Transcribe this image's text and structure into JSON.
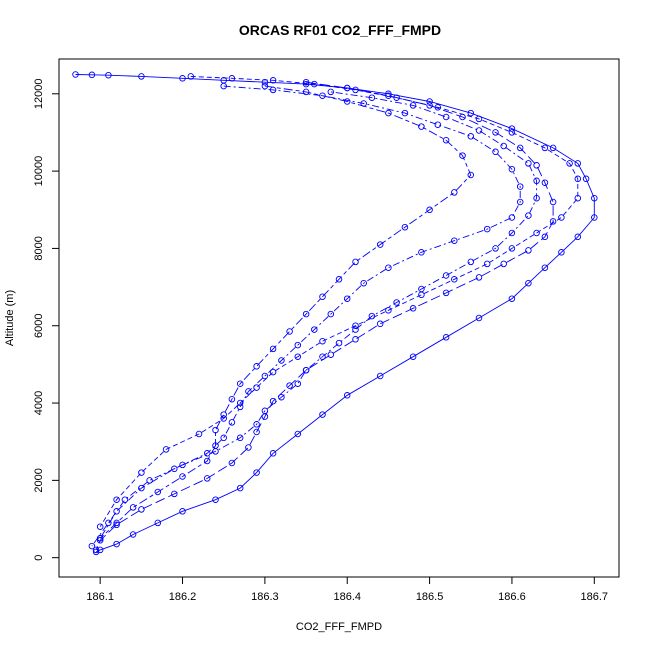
{
  "chart_data": {
    "type": "scatter",
    "title": "ORCAS RF01 CO2_FFF_FMPD",
    "xlabel": "CO2_FFF_FMPD",
    "ylabel": "Altitude (m)",
    "xlim": [
      186.05,
      186.73
    ],
    "ylim": [
      -500,
      12900
    ],
    "xticks": [
      "186.1",
      "186.2",
      "186.3",
      "186.4",
      "186.5",
      "186.6",
      "186.7"
    ],
    "xtick_values": [
      186.1,
      186.2,
      186.3,
      186.4,
      186.5,
      186.6,
      186.7
    ],
    "yticks": [
      "0",
      "2000",
      "4000",
      "6000",
      "8000",
      "10000",
      "12000"
    ],
    "ytick_values": [
      0,
      2000,
      4000,
      6000,
      8000,
      10000,
      12000
    ],
    "marker": "open-circle",
    "color": "#0000ff",
    "grid": false,
    "legend": "none",
    "series": [
      {
        "style": "solid",
        "x": [
          186.07,
          186.09,
          186.11,
          186.15,
          186.2,
          186.25,
          186.3,
          186.35,
          186.4,
          186.45,
          186.5,
          186.55,
          186.6,
          186.65,
          186.68,
          186.69,
          186.7,
          186.7,
          186.68,
          186.66,
          186.64,
          186.62,
          186.6,
          186.56,
          186.52,
          186.48,
          186.44,
          186.4,
          186.37,
          186.34,
          186.31,
          186.29,
          186.27,
          186.24,
          186.2,
          186.17,
          186.14,
          186.12,
          186.1,
          186.095
        ],
        "y": [
          12500,
          12490,
          12480,
          12450,
          12400,
          12350,
          12300,
          12250,
          12150,
          12000,
          11800,
          11500,
          11100,
          10600,
          10200,
          9800,
          9300,
          8800,
          8300,
          7900,
          7500,
          7100,
          6700,
          6200,
          5700,
          5200,
          4700,
          4200,
          3700,
          3200,
          2700,
          2200,
          1800,
          1500,
          1200,
          900,
          600,
          350,
          200,
          150
        ]
      },
      {
        "style": "dashed",
        "x": [
          186.21,
          186.26,
          186.31,
          186.36,
          186.41,
          186.46,
          186.51,
          186.56,
          186.6,
          186.64,
          186.67,
          186.68,
          186.68,
          186.66,
          186.63,
          186.6,
          186.57,
          186.53,
          186.49,
          186.45,
          186.41,
          186.37,
          186.34,
          186.31,
          186.29,
          186.27,
          186.25,
          186.22,
          186.18,
          186.15,
          186.12,
          186.1
        ],
        "y": [
          12450,
          12400,
          12350,
          12250,
          12100,
          11900,
          11650,
          11350,
          11000,
          10600,
          10200,
          9800,
          9300,
          8800,
          8400,
          8000,
          7600,
          7200,
          6800,
          6400,
          6000,
          5600,
          5200,
          4800,
          4400,
          4000,
          3600,
          3200,
          2800,
          2200,
          1500,
          800
        ]
      },
      {
        "style": "longdash",
        "x": [
          186.35,
          186.4,
          186.45,
          186.5,
          186.54,
          186.58,
          186.61,
          186.63,
          186.64,
          186.65,
          186.65,
          186.64,
          186.62,
          186.59,
          186.56,
          186.52,
          186.48,
          186.44,
          186.41,
          186.38,
          186.35,
          186.33,
          186.31,
          186.3,
          186.29,
          186.28,
          186.26,
          186.23,
          186.19,
          186.15,
          186.12,
          186.1,
          186.095
        ],
        "y": [
          12300,
          12150,
          11950,
          11700,
          11400,
          11000,
          10600,
          10150,
          9700,
          9200,
          8700,
          8300,
          7950,
          7600,
          7250,
          6850,
          6450,
          6050,
          5650,
          5250,
          4850,
          4450,
          4050,
          3650,
          3250,
          2850,
          2450,
          2050,
          1650,
          1250,
          850,
          450,
          200
        ]
      },
      {
        "style": "dashdot",
        "x": [
          186.25,
          186.31,
          186.37,
          186.42,
          186.47,
          186.51,
          186.55,
          186.58,
          186.6,
          186.61,
          186.61,
          186.6,
          186.57,
          186.53,
          186.49,
          186.45,
          186.42,
          186.4,
          186.38,
          186.36,
          186.34,
          186.32,
          186.3,
          186.28,
          186.27,
          186.26,
          186.25,
          186.23,
          186.19,
          186.15,
          186.12,
          186.1
        ],
        "y": [
          12200,
          12100,
          11950,
          11750,
          11500,
          11200,
          10900,
          10500,
          10050,
          9600,
          9200,
          8800,
          8500,
          8200,
          7900,
          7500,
          7100,
          6700,
          6300,
          5900,
          5500,
          5100,
          4700,
          4300,
          3900,
          3500,
          3100,
          2700,
          2300,
          1800,
          1200,
          500
        ]
      },
      {
        "style": "dotdash",
        "x": [
          186.38,
          186.43,
          186.48,
          186.52,
          186.56,
          186.59,
          186.62,
          186.63,
          186.63,
          186.62,
          186.6,
          186.58,
          186.55,
          186.52,
          186.49,
          186.46,
          186.43,
          186.41,
          186.39,
          186.37,
          186.35,
          186.34,
          186.32,
          186.3,
          186.29,
          186.27,
          186.24,
          186.2,
          186.16,
          186.13,
          186.11,
          186.09
        ],
        "y": [
          12050,
          11900,
          11700,
          11400,
          11050,
          10650,
          10200,
          9750,
          9300,
          8850,
          8400,
          8000,
          7650,
          7300,
          6950,
          6600,
          6250,
          5900,
          5550,
          5200,
          4850,
          4500,
          4150,
          3800,
          3450,
          3100,
          2750,
          2400,
          2000,
          1500,
          900,
          300
        ]
      },
      {
        "style": "twodash",
        "x": [
          186.3,
          186.35,
          186.4,
          186.45,
          186.49,
          186.52,
          186.54,
          186.55,
          186.53,
          186.5,
          186.47,
          186.44,
          186.41,
          186.39,
          186.37,
          186.35,
          186.33,
          186.31,
          186.29,
          186.27,
          186.26,
          186.25,
          186.24,
          186.24,
          186.23,
          186.2,
          186.17,
          186.14,
          186.12,
          186.1
        ],
        "y": [
          12200,
          12050,
          11800,
          11500,
          11150,
          10800,
          10400,
          9900,
          9450,
          9000,
          8550,
          8100,
          7650,
          7200,
          6750,
          6300,
          5850,
          5400,
          4950,
          4500,
          4100,
          3700,
          3300,
          2900,
          2500,
          2100,
          1700,
          1300,
          900,
          500
        ]
      }
    ]
  }
}
